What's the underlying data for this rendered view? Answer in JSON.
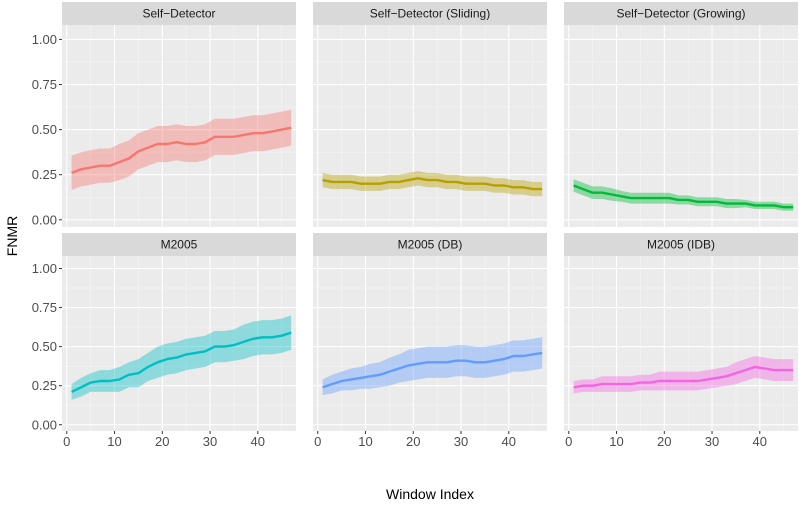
{
  "chart_data": {
    "type": "line",
    "xlabel": "Window Index",
    "ylabel": "FNMR",
    "xlim": [
      -1,
      48
    ],
    "ylim": [
      -0.04,
      1.08
    ],
    "x_ticks": [
      0,
      10,
      20,
      30,
      40
    ],
    "y_ticks": [
      0,
      0.25,
      0.5,
      0.75,
      1.0
    ],
    "y_tick_labels": [
      "0.00",
      "0.25",
      "0.50",
      "0.75",
      "1.00"
    ],
    "x_tick_labels": [
      "0",
      "10",
      "20",
      "30",
      "40"
    ],
    "grid": true,
    "band": "shaded confidence interval around each line",
    "x": [
      1,
      3,
      5,
      7,
      9,
      11,
      13,
      15,
      17,
      19,
      21,
      23,
      25,
      27,
      29,
      31,
      33,
      35,
      37,
      39,
      41,
      43,
      45,
      47
    ],
    "panels": [
      {
        "title": "Self−Detector",
        "color": "#F8766D",
        "values": [
          0.26,
          0.28,
          0.29,
          0.3,
          0.3,
          0.32,
          0.34,
          0.38,
          0.4,
          0.42,
          0.42,
          0.43,
          0.42,
          0.42,
          0.43,
          0.46,
          0.46,
          0.46,
          0.47,
          0.48,
          0.48,
          0.49,
          0.5,
          0.51
        ],
        "band": [
          0.095,
          0.095,
          0.095,
          0.095,
          0.095,
          0.1,
          0.1,
          0.1,
          0.1,
          0.1,
          0.1,
          0.1,
          0.1,
          0.1,
          0.1,
          0.1,
          0.1,
          0.1,
          0.1,
          0.1,
          0.1,
          0.1,
          0.1,
          0.1
        ]
      },
      {
        "title": "Self−Detector (Sliding)",
        "color": "#B79F00",
        "values": [
          0.22,
          0.21,
          0.21,
          0.21,
          0.2,
          0.2,
          0.2,
          0.21,
          0.21,
          0.22,
          0.23,
          0.22,
          0.22,
          0.21,
          0.21,
          0.2,
          0.2,
          0.2,
          0.19,
          0.19,
          0.18,
          0.18,
          0.17,
          0.17
        ],
        "band": [
          0.04,
          0.04,
          0.04,
          0.04,
          0.04,
          0.04,
          0.04,
          0.04,
          0.04,
          0.04,
          0.04,
          0.04,
          0.04,
          0.04,
          0.04,
          0.04,
          0.04,
          0.04,
          0.04,
          0.04,
          0.04,
          0.04,
          0.04,
          0.04
        ]
      },
      {
        "title": "Self−Detector (Growing)",
        "color": "#00BA38",
        "values": [
          0.19,
          0.17,
          0.15,
          0.15,
          0.14,
          0.13,
          0.12,
          0.12,
          0.12,
          0.12,
          0.12,
          0.11,
          0.11,
          0.1,
          0.1,
          0.1,
          0.09,
          0.09,
          0.09,
          0.08,
          0.08,
          0.08,
          0.07,
          0.07
        ],
        "band": [
          0.035,
          0.035,
          0.035,
          0.035,
          0.035,
          0.03,
          0.03,
          0.03,
          0.03,
          0.03,
          0.03,
          0.025,
          0.025,
          0.025,
          0.025,
          0.025,
          0.025,
          0.025,
          0.02,
          0.02,
          0.02,
          0.02,
          0.02,
          0.02
        ]
      },
      {
        "title": "M2005",
        "color": "#00BFC4",
        "values": [
          0.21,
          0.24,
          0.27,
          0.28,
          0.28,
          0.29,
          0.32,
          0.33,
          0.37,
          0.4,
          0.42,
          0.43,
          0.45,
          0.46,
          0.47,
          0.5,
          0.5,
          0.51,
          0.53,
          0.55,
          0.56,
          0.56,
          0.57,
          0.59
        ],
        "band": [
          0.05,
          0.06,
          0.06,
          0.07,
          0.07,
          0.08,
          0.08,
          0.09,
          0.09,
          0.1,
          0.1,
          0.1,
          0.1,
          0.1,
          0.1,
          0.1,
          0.1,
          0.1,
          0.11,
          0.11,
          0.11,
          0.11,
          0.11,
          0.11
        ]
      },
      {
        "title": "M2005 (DB)",
        "color": "#619CFF",
        "values": [
          0.24,
          0.26,
          0.28,
          0.29,
          0.3,
          0.31,
          0.32,
          0.34,
          0.36,
          0.38,
          0.39,
          0.4,
          0.4,
          0.4,
          0.41,
          0.41,
          0.4,
          0.4,
          0.41,
          0.42,
          0.44,
          0.44,
          0.45,
          0.46
        ],
        "band": [
          0.05,
          0.06,
          0.06,
          0.07,
          0.07,
          0.08,
          0.08,
          0.09,
          0.09,
          0.1,
          0.1,
          0.1,
          0.1,
          0.1,
          0.1,
          0.1,
          0.1,
          0.1,
          0.1,
          0.1,
          0.1,
          0.1,
          0.1,
          0.1
        ]
      },
      {
        "title": "M2005 (IDB)",
        "color": "#F564E3",
        "values": [
          0.24,
          0.25,
          0.25,
          0.26,
          0.26,
          0.26,
          0.26,
          0.27,
          0.27,
          0.28,
          0.28,
          0.28,
          0.28,
          0.28,
          0.29,
          0.3,
          0.31,
          0.33,
          0.35,
          0.37,
          0.36,
          0.35,
          0.35,
          0.35
        ],
        "band": [
          0.04,
          0.04,
          0.04,
          0.05,
          0.05,
          0.05,
          0.05,
          0.05,
          0.05,
          0.06,
          0.06,
          0.06,
          0.06,
          0.06,
          0.06,
          0.06,
          0.06,
          0.07,
          0.07,
          0.07,
          0.07,
          0.07,
          0.07,
          0.07
        ]
      }
    ]
  }
}
